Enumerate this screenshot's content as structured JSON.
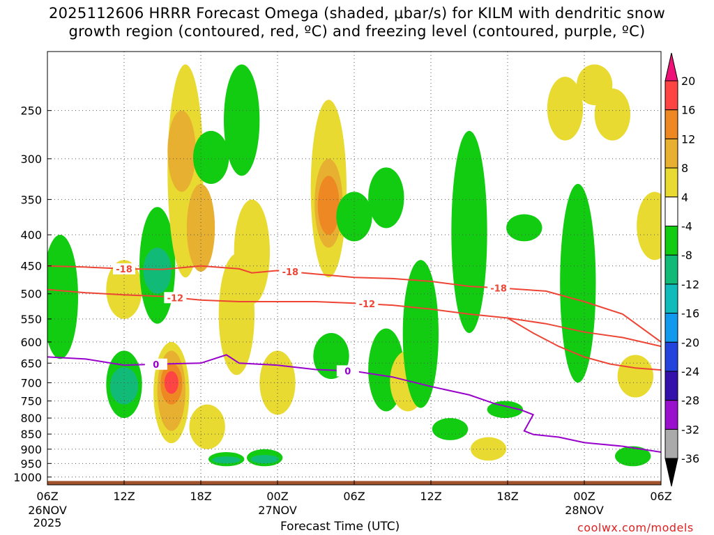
{
  "title_line1": "2025112606 HRRR Forecast Omega (shaded, μbar/s) for KILM with dendritic snow",
  "title_line2": "growth region (contoured, red, ºC) and freezing level (contoured, purple, ºC)",
  "xlabel": "Forecast Time (UTC)",
  "credit": "coolwx.com/models",
  "colors": {
    "snow_contour": "#ee4433",
    "freezing_contour": "#9900cc",
    "terrain": "#a0522d",
    "grid": "#555555"
  },
  "chart_data": {
    "type": "time-height contour",
    "x_range_hours": [
      0,
      48
    ],
    "x_ticks": [
      {
        "h": 0,
        "label": "06Z",
        "date": "26NOV",
        "year": "2025"
      },
      {
        "h": 6,
        "label": "12Z"
      },
      {
        "h": 12,
        "label": "18Z"
      },
      {
        "h": 18,
        "label": "00Z",
        "date": "27NOV"
      },
      {
        "h": 24,
        "label": "06Z"
      },
      {
        "h": 30,
        "label": "12Z"
      },
      {
        "h": 36,
        "label": "18Z"
      },
      {
        "h": 42,
        "label": "00Z",
        "date": "28NOV"
      },
      {
        "h": 48,
        "label": "06Z"
      }
    ],
    "y_axis": "pressure (mb), log scale",
    "y_ticks": [
      250,
      300,
      350,
      400,
      450,
      500,
      550,
      600,
      650,
      700,
      750,
      800,
      850,
      900,
      950,
      1000
    ],
    "y_range_mb": [
      200,
      1030
    ],
    "grid": true,
    "colorbar": {
      "labels": [
        "20",
        "16",
        "12",
        "8",
        "4",
        "-4",
        "-8",
        "-12",
        "-16",
        "-20",
        "-24",
        "-28",
        "-32",
        "-36"
      ],
      "bins": [
        {
          "value": 20,
          "color": "#ee1177"
        },
        {
          "value": 16,
          "color": "#ff4444"
        },
        {
          "value": 12,
          "color": "#ee8822"
        },
        {
          "value": 8,
          "color": "#e8b030"
        },
        {
          "value": 4,
          "color": "#e8da30"
        },
        {
          "value": 0,
          "color": "#ffffff"
        },
        {
          "value": -4,
          "color": "#11cc11"
        },
        {
          "value": -8,
          "color": "#11bb77"
        },
        {
          "value": -12,
          "color": "#11bbbb"
        },
        {
          "value": -16,
          "color": "#1199ee"
        },
        {
          "value": -20,
          "color": "#2244dd"
        },
        {
          "value": -24,
          "color": "#3311aa"
        },
        {
          "value": -28,
          "color": "#9911cc"
        },
        {
          "value": -32,
          "color": "#aaaaaa"
        },
        {
          "value": -36,
          "color": "#000000"
        }
      ]
    },
    "contours": [
      {
        "name": "-18",
        "color": "#ee4433",
        "label_at": [
          6,
          19,
          35.3
        ],
        "points": [
          [
            0,
            450
          ],
          [
            3,
            452
          ],
          [
            6,
            455
          ],
          [
            9,
            456
          ],
          [
            12,
            450
          ],
          [
            15,
            455
          ],
          [
            16,
            462
          ],
          [
            18,
            458
          ],
          [
            21,
            464
          ],
          [
            24,
            470
          ],
          [
            27,
            472
          ],
          [
            30,
            477
          ],
          [
            33,
            486
          ],
          [
            36,
            490
          ],
          [
            39,
            495
          ],
          [
            42,
            515
          ],
          [
            45,
            540
          ],
          [
            48,
            600
          ]
        ]
      },
      {
        "name": "-12",
        "color": "#ee4433",
        "label_at": [
          10,
          25
        ],
        "points": [
          [
            0,
            492
          ],
          [
            3,
            498
          ],
          [
            6,
            502
          ],
          [
            9,
            505
          ],
          [
            12,
            512
          ],
          [
            15,
            515
          ],
          [
            18,
            515
          ],
          [
            21,
            515
          ],
          [
            24,
            518
          ],
          [
            27,
            522
          ],
          [
            30,
            530
          ],
          [
            33,
            540
          ],
          [
            36,
            548
          ],
          [
            39,
            560
          ],
          [
            42,
            578
          ],
          [
            45,
            590
          ],
          [
            48,
            610
          ]
        ]
      },
      {
        "name": "-12",
        "color": "#ee4433",
        "label_at": [],
        "points": [
          [
            36,
            548
          ],
          [
            38,
            580
          ],
          [
            40,
            610
          ],
          [
            42,
            635
          ],
          [
            44,
            652
          ],
          [
            46,
            662
          ],
          [
            48,
            667
          ]
        ]
      },
      {
        "name": "0",
        "color": "#9900cc",
        "label_at": [
          8.5,
          23.5
        ],
        "points": [
          [
            0,
            635
          ],
          [
            3,
            640
          ],
          [
            6,
            655
          ],
          [
            9,
            652
          ],
          [
            12,
            650
          ],
          [
            14,
            630
          ],
          [
            15,
            650
          ],
          [
            18,
            655
          ],
          [
            21,
            666
          ],
          [
            24,
            670
          ],
          [
            27,
            685
          ],
          [
            30,
            710
          ],
          [
            33,
            733
          ],
          [
            35,
            758
          ],
          [
            37,
            775
          ],
          [
            38,
            790
          ],
          [
            37.3,
            840
          ],
          [
            38,
            851
          ],
          [
            40,
            860
          ],
          [
            42,
            878
          ],
          [
            45,
            890
          ],
          [
            48,
            910
          ]
        ]
      }
    ],
    "shaded_regions": [
      {
        "v": 4,
        "h": 6.0,
        "p": [
          440,
          550
        ]
      },
      {
        "v": -4,
        "h": 1.0,
        "p": [
          400,
          640
        ]
      },
      {
        "v": -4,
        "h": 6.0,
        "p": [
          620,
          800
        ]
      },
      {
        "v": -8,
        "h": 6.0,
        "p": [
          660,
          760
        ]
      },
      {
        "v": 4,
        "h": 9.7,
        "p": [
          600,
          880
        ]
      },
      {
        "v": 8,
        "h": 9.7,
        "p": [
          620,
          840
        ]
      },
      {
        "v": 12,
        "h": 9.7,
        "p": [
          650,
          760
        ]
      },
      {
        "v": 16,
        "h": 9.7,
        "p": [
          670,
          730
        ]
      },
      {
        "v": -4,
        "h": 8.6,
        "p": [
          360,
          560
        ]
      },
      {
        "v": -8,
        "h": 8.6,
        "p": [
          420,
          500
        ]
      },
      {
        "v": 4,
        "h": 10.8,
        "p": [
          210,
          470
        ]
      },
      {
        "v": 8,
        "h": 10.5,
        "p": [
          250,
          340
        ]
      },
      {
        "v": 8,
        "h": 12.0,
        "p": [
          330,
          460
        ]
      },
      {
        "v": -4,
        "h": 12.8,
        "p": [
          270,
          330
        ]
      },
      {
        "v": 4,
        "h": 12.5,
        "p": [
          760,
          900
        ]
      },
      {
        "v": -4,
        "h": 15.2,
        "p": [
          210,
          320
        ]
      },
      {
        "v": 4,
        "h": 14.8,
        "p": [
          430,
          680
        ]
      },
      {
        "v": 4,
        "h": 16.0,
        "p": [
          350,
          520
        ]
      },
      {
        "v": -4,
        "h": 14.0,
        "p": [
          910,
          960
        ]
      },
      {
        "v": -8,
        "h": 14.0,
        "p": [
          925,
          950
        ]
      },
      {
        "v": -4,
        "h": 17.0,
        "p": [
          900,
          960
        ]
      },
      {
        "v": -8,
        "h": 17.0,
        "p": [
          920,
          950
        ]
      },
      {
        "v": 4,
        "h": 18.0,
        "p": [
          620,
          790
        ]
      },
      {
        "v": 4,
        "h": 22.0,
        "p": [
          240,
          470
        ]
      },
      {
        "v": 8,
        "h": 22.0,
        "p": [
          300,
          420
        ]
      },
      {
        "v": 12,
        "h": 22.0,
        "p": [
          320,
          400
        ]
      },
      {
        "v": -4,
        "h": 24.0,
        "p": [
          340,
          410
        ]
      },
      {
        "v": -4,
        "h": 22.2,
        "p": [
          580,
          690
        ]
      },
      {
        "v": -4,
        "h": 26.5,
        "p": [
          310,
          390
        ]
      },
      {
        "v": -4,
        "h": 26.5,
        "p": [
          570,
          780
        ]
      },
      {
        "v": 4,
        "h": 28.2,
        "p": [
          620,
          780
        ]
      },
      {
        "v": -4,
        "h": 29.2,
        "p": [
          440,
          770
        ]
      },
      {
        "v": -4,
        "h": 33.0,
        "p": [
          270,
          580
        ]
      },
      {
        "v": -4,
        "h": 31.5,
        "p": [
          800,
          870
        ]
      },
      {
        "v": -4,
        "h": 35.8,
        "p": [
          750,
          800
        ]
      },
      {
        "v": 4,
        "h": 34.5,
        "p": [
          860,
          940
        ]
      },
      {
        "v": -4,
        "h": 37.3,
        "p": [
          370,
          410
        ]
      },
      {
        "v": 4,
        "h": 40.5,
        "p": [
          220,
          280
        ]
      },
      {
        "v": 4,
        "h": 42.8,
        "p": [
          210,
          245
        ]
      },
      {
        "v": 4,
        "h": 44.2,
        "p": [
          230,
          280
        ]
      },
      {
        "v": -4,
        "h": 41.5,
        "p": [
          330,
          700
        ]
      },
      {
        "v": 4,
        "h": 47.5,
        "p": [
          340,
          440
        ]
      },
      {
        "v": 4,
        "h": 46.0,
        "p": [
          630,
          740
        ]
      },
      {
        "v": -4,
        "h": 45.8,
        "p": [
          890,
          960
        ]
      }
    ]
  }
}
